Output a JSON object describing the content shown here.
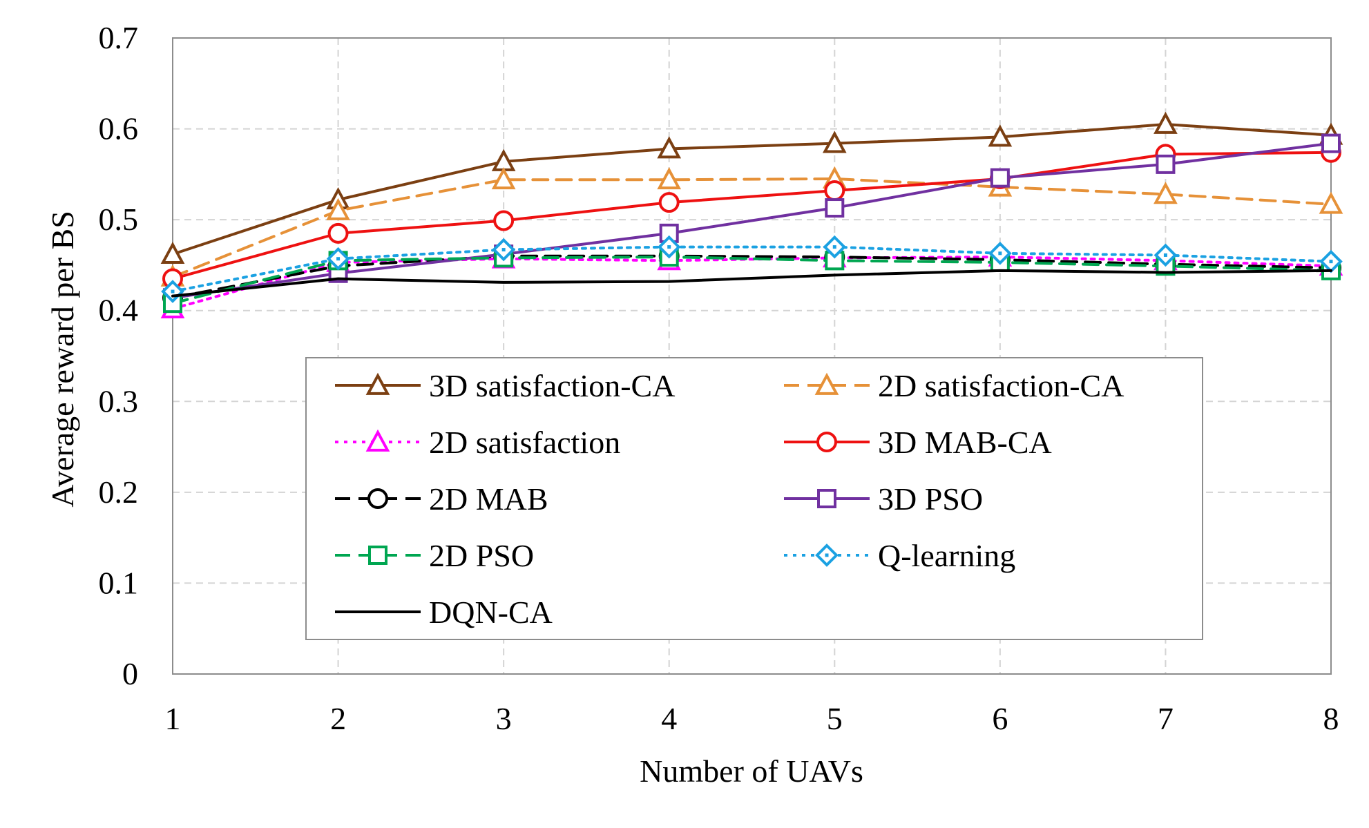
{
  "chart_data": {
    "type": "line",
    "title": "",
    "xlabel": "Number of UAVs",
    "ylabel": "Average reward per BS",
    "x": [
      1,
      2,
      3,
      4,
      5,
      6,
      7,
      8
    ],
    "xlim": [
      1,
      8
    ],
    "ylim": [
      0,
      0.7
    ],
    "xticks": [
      "1",
      "2",
      "3",
      "4",
      "5",
      "6",
      "7",
      "8"
    ],
    "yticks": [
      "0",
      "0.1",
      "0.2",
      "0.3",
      "0.4",
      "0.5",
      "0.6",
      "0.7"
    ],
    "ytick_values": [
      0,
      0.1,
      0.2,
      0.3,
      0.4,
      0.5,
      0.6,
      0.7
    ],
    "grid": true,
    "legend_position": "center-bottom",
    "series": [
      {
        "name": "3D satisfaction-CA",
        "color": "#7B3F12",
        "dash": "solid",
        "marker": "triangle",
        "values": [
          0.462,
          0.522,
          0.564,
          0.578,
          0.584,
          0.591,
          0.605,
          0.593
        ]
      },
      {
        "name": "2D satisfaction-CA",
        "color": "#E69138",
        "dash": "dashed",
        "marker": "triangle",
        "values": [
          0.437,
          0.51,
          0.544,
          0.544,
          0.545,
          0.536,
          0.528,
          0.517
        ]
      },
      {
        "name": "2D satisfaction",
        "color": "#FF00FF",
        "dash": "dotted",
        "marker": "triangle",
        "values": [
          0.402,
          0.453,
          0.457,
          0.455,
          0.458,
          0.459,
          0.455,
          0.449
        ]
      },
      {
        "name": "3D MAB-CA",
        "color": "#EE1111",
        "dash": "solid",
        "marker": "circle",
        "values": [
          0.435,
          0.485,
          0.499,
          0.519,
          0.532,
          0.545,
          0.572,
          0.574
        ]
      },
      {
        "name": "2D MAB",
        "color": "#000000",
        "dash": "dashed",
        "marker": "circle",
        "values": [
          0.414,
          0.449,
          0.46,
          0.46,
          0.459,
          0.456,
          0.451,
          0.447
        ]
      },
      {
        "name": "3D PSO",
        "color": "#7030A0",
        "dash": "solid",
        "marker": "square",
        "values": [
          0.414,
          0.441,
          0.462,
          0.485,
          0.513,
          0.546,
          0.561,
          0.584
        ]
      },
      {
        "name": "2D PSO",
        "color": "#00A651",
        "dash": "dashed",
        "marker": "square",
        "values": [
          0.408,
          0.455,
          0.458,
          0.459,
          0.455,
          0.453,
          0.449,
          0.444
        ]
      },
      {
        "name": "Q-learning",
        "color": "#1BA1E2",
        "dash": "dotted",
        "marker": "diamond",
        "values": [
          0.421,
          0.457,
          0.467,
          0.47,
          0.47,
          0.463,
          0.461,
          0.454
        ]
      },
      {
        "name": "DQN-CA",
        "color": "#000000",
        "dash": "solid",
        "marker": "none",
        "values": [
          0.416,
          0.435,
          0.431,
          0.432,
          0.439,
          0.444,
          0.442,
          0.444
        ]
      }
    ]
  }
}
